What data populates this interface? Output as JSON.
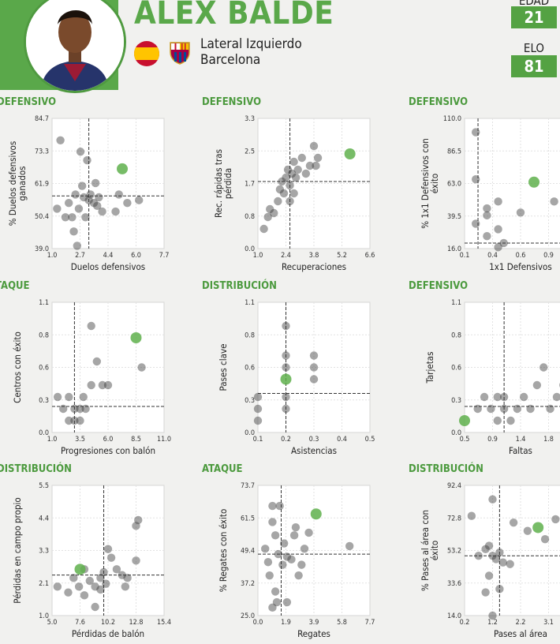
{
  "player": {
    "name": "ÁLEX BALDE",
    "position": "Lateral Izquierdo",
    "club": "Barcelona",
    "age_label": "EDAD",
    "age": "21",
    "elo_label": "ELO",
    "elo": "81"
  },
  "colors": {
    "accent": "#5aa84a",
    "point": "#3a3a3a",
    "highlight": "#5fb04c"
  },
  "chart_data": [
    {
      "type": "scatter",
      "section": "DEFENSIVO",
      "xlabel": "Duelos defensivos",
      "ylabel": "% Duelos defensivos ganados",
      "xticks": [
        "1.0",
        "2.7",
        "4.4",
        "6.0",
        "7.7"
      ],
      "yticks": [
        "39.0",
        "50.4",
        "61.9",
        "73.3",
        "84.7"
      ],
      "xlim": [
        1.0,
        7.7
      ],
      "ylim": [
        39.0,
        84.7
      ],
      "ref_x": 3.2,
      "ref_y": 57.5,
      "points": [
        [
          1.3,
          53
        ],
        [
          1.5,
          77
        ],
        [
          1.8,
          50
        ],
        [
          2.0,
          55
        ],
        [
          2.2,
          50
        ],
        [
          2.4,
          58
        ],
        [
          2.6,
          53
        ],
        [
          2.7,
          73
        ],
        [
          2.8,
          61
        ],
        [
          2.9,
          57
        ],
        [
          3.0,
          50
        ],
        [
          3.1,
          70
        ],
        [
          3.2,
          56
        ],
        [
          3.3,
          58
        ],
        [
          3.5,
          55
        ],
        [
          3.6,
          62
        ],
        [
          3.7,
          54
        ],
        [
          3.8,
          57
        ],
        [
          4.0,
          52
        ],
        [
          2.5,
          40
        ],
        [
          2.3,
          45
        ],
        [
          5.0,
          58
        ],
        [
          5.5,
          55
        ],
        [
          6.2,
          56
        ],
        [
          4.8,
          52
        ]
      ],
      "player_point": [
        5.2,
        67
      ]
    },
    {
      "type": "scatter",
      "section": "DEFENSIVO",
      "xlabel": "Recuperaciones",
      "ylabel": "Rec. rápidas tras pérdida",
      "xticks": [
        "1.0",
        "2.4",
        "3.8",
        "5.2",
        "6.6"
      ],
      "yticks": [
        "0.0",
        "0.8",
        "1.7",
        "2.5",
        "3.3"
      ],
      "xlim": [
        1.0,
        6.6
      ],
      "ylim": [
        0.0,
        3.3
      ],
      "ref_x": 2.6,
      "ref_y": 1.7,
      "points": [
        [
          1.3,
          0.5
        ],
        [
          1.5,
          0.8
        ],
        [
          1.6,
          1.0
        ],
        [
          1.8,
          0.9
        ],
        [
          2.0,
          1.2
        ],
        [
          2.1,
          1.5
        ],
        [
          2.2,
          1.7
        ],
        [
          2.3,
          1.4
        ],
        [
          2.4,
          1.8
        ],
        [
          2.5,
          2.0
        ],
        [
          2.6,
          1.6
        ],
        [
          2.7,
          1.9
        ],
        [
          2.8,
          2.2
        ],
        [
          2.9,
          1.8
        ],
        [
          3.0,
          2.0
        ],
        [
          3.2,
          2.3
        ],
        [
          3.4,
          1.9
        ],
        [
          3.6,
          2.1
        ],
        [
          3.8,
          2.6
        ],
        [
          4.0,
          2.3
        ],
        [
          3.9,
          2.1
        ],
        [
          2.6,
          1.2
        ],
        [
          2.8,
          1.4
        ]
      ],
      "player_point": [
        5.6,
        2.4
      ]
    },
    {
      "type": "scatter",
      "section": "DEFENSIVO",
      "xlabel": "1x1 Defensivos",
      "ylabel": "% 1x1 Defensivos con éxito",
      "xticks": [
        "0.1",
        "0.4",
        "0.6",
        "0.9"
      ],
      "yticks": [
        "16.0",
        "39.5",
        "63.0",
        "86.5",
        "110.0"
      ],
      "xlim": [
        0.1,
        1.1
      ],
      "ylim": [
        16.0,
        110.0
      ],
      "ref_x": 0.22,
      "ref_y": 20.0,
      "points": [
        [
          0.2,
          100
        ],
        [
          0.2,
          66
        ],
        [
          0.3,
          45
        ],
        [
          0.3,
          40
        ],
        [
          0.4,
          50
        ],
        [
          0.4,
          30
        ],
        [
          0.3,
          25
        ],
        [
          0.2,
          34
        ],
        [
          0.45,
          20
        ],
        [
          0.4,
          17
        ],
        [
          0.6,
          42
        ],
        [
          0.9,
          50
        ]
      ],
      "player_point": [
        0.72,
        64
      ]
    },
    {
      "type": "scatter",
      "section": "ATAQUE",
      "xlabel": "Progresiones con balón",
      "ylabel": "Centros con éxito",
      "xticks": [
        "1.0",
        "3.5",
        "6.0",
        "8.5",
        "11.0"
      ],
      "yticks": [
        "0.0",
        "0.3",
        "0.6",
        "0.8",
        "1.1"
      ],
      "xlim": [
        1.0,
        11.0
      ],
      "ylim": [
        0.0,
        1.1
      ],
      "ref_x": 3.0,
      "ref_y": 0.22,
      "points": [
        [
          1.5,
          0.3
        ],
        [
          2.0,
          0.2
        ],
        [
          2.5,
          0.3
        ],
        [
          3.0,
          0.2
        ],
        [
          3.5,
          0.2
        ],
        [
          3.8,
          0.3
        ],
        [
          4.0,
          0.2
        ],
        [
          4.5,
          0.4
        ],
        [
          5.0,
          0.6
        ],
        [
          5.5,
          0.4
        ],
        [
          4.5,
          0.9
        ],
        [
          3.0,
          0.1
        ],
        [
          3.5,
          0.1
        ],
        [
          2.5,
          0.1
        ],
        [
          6.0,
          0.4
        ],
        [
          9.0,
          0.55
        ]
      ],
      "player_point": [
        8.5,
        0.8
      ]
    },
    {
      "type": "scatter",
      "section": "DISTRIBUCIÓN",
      "xlabel": "Asistencias",
      "ylabel": "Pases clave",
      "xticks": [
        "0.1",
        "0.2",
        "0.3",
        "0.4",
        "0.5"
      ],
      "yticks": [
        "0.0",
        "0.3",
        "0.6",
        "0.8",
        "1.1"
      ],
      "xlim": [
        0.1,
        0.5
      ],
      "ylim": [
        0.0,
        1.1
      ],
      "ref_x": 0.2,
      "ref_y": 0.33,
      "points": [
        [
          0.1,
          0.1
        ],
        [
          0.1,
          0.2
        ],
        [
          0.1,
          0.3
        ],
        [
          0.2,
          0.2
        ],
        [
          0.2,
          0.3
        ],
        [
          0.2,
          0.55
        ],
        [
          0.2,
          0.65
        ],
        [
          0.2,
          0.9
        ],
        [
          0.3,
          0.55
        ],
        [
          0.3,
          0.65
        ],
        [
          0.3,
          0.45
        ]
      ],
      "player_point": [
        0.2,
        0.45
      ]
    },
    {
      "type": "scatter",
      "section": "DEFENSIVO",
      "xlabel": "Faltas",
      "ylabel": "Tarjetas",
      "xticks": [
        "0.5",
        "0.9",
        "1.4",
        "1.8"
      ],
      "yticks": [
        "0.0",
        "0.3",
        "0.6",
        "0.8",
        "1.1"
      ],
      "xlim": [
        0.5,
        2.2
      ],
      "ylim": [
        0.0,
        1.1
      ],
      "ref_x": 1.1,
      "ref_y": 0.22,
      "points": [
        [
          0.7,
          0.2
        ],
        [
          0.8,
          0.3
        ],
        [
          0.9,
          0.2
        ],
        [
          1.0,
          0.3
        ],
        [
          1.1,
          0.2
        ],
        [
          1.1,
          0.3
        ],
        [
          1.2,
          0.1
        ],
        [
          1.3,
          0.2
        ],
        [
          1.4,
          0.3
        ],
        [
          1.5,
          0.2
        ],
        [
          1.6,
          0.4
        ],
        [
          1.7,
          0.55
        ],
        [
          1.8,
          0.2
        ],
        [
          1.9,
          0.3
        ],
        [
          2.0,
          0.4
        ],
        [
          1.0,
          0.1
        ]
      ],
      "player_point": [
        0.5,
        0.1
      ]
    },
    {
      "type": "scatter",
      "section": "DISTRIBUCIÓN",
      "xlabel": "Pérdidas de balón",
      "ylabel": "Pérdidas en campo propio",
      "xticks": [
        "5.0",
        "7.6",
        "10.2",
        "12.8",
        "15.4"
      ],
      "yticks": [
        "1.0",
        "2.1",
        "3.3",
        "4.4",
        "5.5"
      ],
      "xlim": [
        5.0,
        15.4
      ],
      "ylim": [
        1.0,
        5.5
      ],
      "ref_x": 9.8,
      "ref_y": 2.4,
      "points": [
        [
          5.5,
          2.0
        ],
        [
          6.5,
          1.8
        ],
        [
          7.0,
          2.3
        ],
        [
          7.5,
          2.0
        ],
        [
          8.0,
          1.7
        ],
        [
          8.5,
          2.2
        ],
        [
          9.0,
          2.0
        ],
        [
          9.5,
          2.3
        ],
        [
          9.5,
          1.9
        ],
        [
          10.0,
          2.1
        ],
        [
          10.2,
          3.3
        ],
        [
          10.5,
          3.0
        ],
        [
          11.0,
          2.6
        ],
        [
          11.5,
          2.4
        ],
        [
          12.0,
          2.3
        ],
        [
          12.8,
          2.9
        ],
        [
          13.0,
          4.3
        ],
        [
          12.8,
          4.1
        ],
        [
          9.0,
          1.3
        ],
        [
          8.0,
          2.6
        ],
        [
          11.8,
          2.0
        ],
        [
          9.8,
          2.5
        ]
      ],
      "player_point": [
        7.6,
        2.6
      ]
    },
    {
      "type": "scatter",
      "section": "ATAQUE",
      "xlabel": "Regates",
      "ylabel": "% Regates con éxito",
      "xticks": [
        "0.0",
        "1.9",
        "3.9",
        "5.8",
        "7.7"
      ],
      "yticks": [
        "25.0",
        "37.2",
        "49.4",
        "61.5",
        "73.7"
      ],
      "xlim": [
        0.0,
        7.7
      ],
      "ylim": [
        25.0,
        73.7
      ],
      "ref_x": 1.6,
      "ref_y": 48.0,
      "points": [
        [
          0.5,
          50
        ],
        [
          0.7,
          45
        ],
        [
          0.8,
          40
        ],
        [
          1.0,
          60
        ],
        [
          1.2,
          55
        ],
        [
          1.0,
          66
        ],
        [
          1.5,
          66
        ],
        [
          1.4,
          48
        ],
        [
          1.7,
          44
        ],
        [
          1.8,
          52
        ],
        [
          2.0,
          47
        ],
        [
          2.3,
          46
        ],
        [
          2.5,
          55
        ],
        [
          2.6,
          58
        ],
        [
          2.8,
          40
        ],
        [
          3.2,
          50
        ],
        [
          3.0,
          44
        ],
        [
          1.3,
          30
        ],
        [
          1.0,
          28
        ],
        [
          2.0,
          30
        ],
        [
          6.3,
          51
        ],
        [
          1.2,
          34
        ],
        [
          3.5,
          56
        ]
      ],
      "player_point": [
        4.0,
        63
      ]
    },
    {
      "type": "scatter",
      "section": "DISTRIBUCIÓN",
      "xlabel": "Pases al área",
      "ylabel": "% Pases al área con éxito",
      "xticks": [
        "0.2",
        "1.2",
        "2.2",
        "3.1"
      ],
      "yticks": [
        "14.0",
        "33.6",
        "53.2",
        "72.8",
        "92.4"
      ],
      "xlim": [
        0.2,
        3.4
      ],
      "ylim": [
        14.0,
        92.4
      ],
      "ref_x": 1.2,
      "ref_y": 50.0,
      "points": [
        [
          0.4,
          74
        ],
        [
          0.6,
          50
        ],
        [
          0.8,
          54
        ],
        [
          0.9,
          56
        ],
        [
          1.0,
          50
        ],
        [
          1.1,
          48
        ],
        [
          1.2,
          52
        ],
        [
          1.3,
          46
        ],
        [
          1.0,
          84
        ],
        [
          0.9,
          38
        ],
        [
          1.2,
          30
        ],
        [
          1.5,
          45
        ],
        [
          1.6,
          70
        ],
        [
          2.0,
          65
        ],
        [
          2.5,
          60
        ],
        [
          2.8,
          72
        ],
        [
          1.0,
          14
        ],
        [
          0.8,
          28
        ]
      ],
      "player_point": [
        2.3,
        67
      ]
    }
  ]
}
